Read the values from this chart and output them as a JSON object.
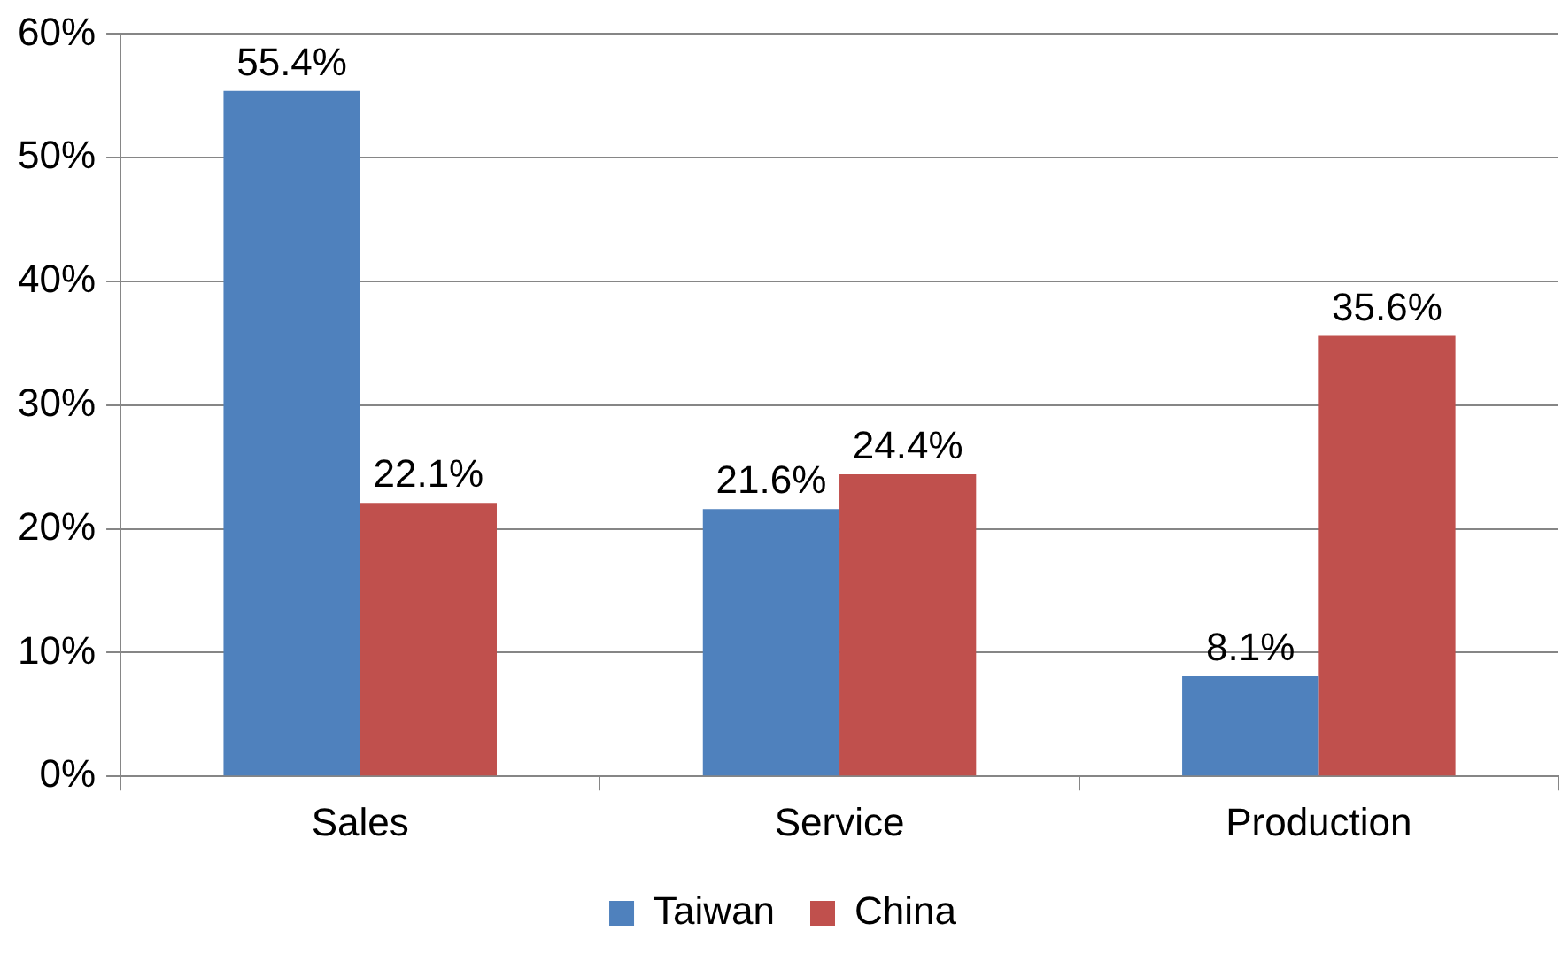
{
  "chart_data": {
    "type": "bar",
    "categories": [
      "Sales",
      "Service",
      "Production"
    ],
    "series": [
      {
        "name": "Taiwan",
        "color": "#4f81bd",
        "values": [
          55.4,
          21.6,
          8.1
        ],
        "value_labels": [
          "55.4%",
          "21.6%",
          "8.1%"
        ]
      },
      {
        "name": "China",
        "color": "#c0504d",
        "values": [
          22.1,
          24.4,
          35.6
        ],
        "value_labels": [
          "22.1%",
          "24.4%",
          "35.6%"
        ]
      }
    ],
    "ylim": [
      0,
      60
    ],
    "yticks": [
      {
        "value": 0,
        "label": "0%"
      },
      {
        "value": 10,
        "label": "10%"
      },
      {
        "value": 20,
        "label": "20%"
      },
      {
        "value": 30,
        "label": "30%"
      },
      {
        "value": 40,
        "label": "40%"
      },
      {
        "value": 50,
        "label": "50%"
      },
      {
        "value": 60,
        "label": "60%"
      }
    ],
    "grid": "y",
    "legend": "bottom"
  }
}
